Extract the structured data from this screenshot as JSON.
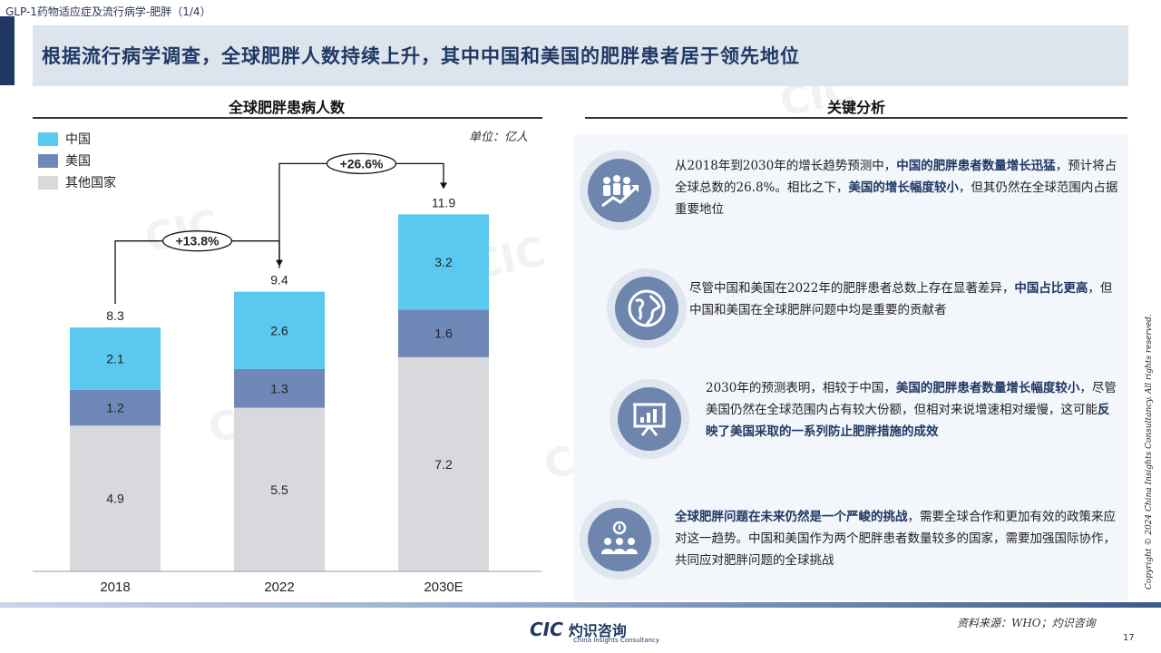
{
  "header": {
    "section_label": "GLP-1药物适应症及流行病学-肥胖（1/4）",
    "title": "根据流行病学调查，全球肥胖人数持续上升，其中中国和美国的肥胖患者居于领先地位"
  },
  "left_panel": {
    "title": "全球肥胖患病人数",
    "unit": "单位：亿人",
    "legend": [
      "中国",
      "美国",
      "其他国家"
    ]
  },
  "right_panel": {
    "title": "关键分析",
    "points": [
      {
        "icon": "people-growth-icon",
        "segments": [
          {
            "t": "从2018年到2030年的增长趋势预测中，",
            "b": false
          },
          {
            "t": "中国的肥胖患者数量增长迅猛",
            "b": true
          },
          {
            "t": "，预计将占全球总数的26.8%。相比之下，",
            "b": false
          },
          {
            "t": "美国的增长幅度较小",
            "b": true
          },
          {
            "t": "，但其仍然在全球范围内占据重要地位",
            "b": false
          }
        ]
      },
      {
        "icon": "globe-icon",
        "segments": [
          {
            "t": "尽管中国和美国在2022年的肥胖患者总数上存在显著差异，",
            "b": false
          },
          {
            "t": "中国占比更高",
            "b": true
          },
          {
            "t": "，但中国和美国在全球肥胖问题中均是重要的贡献者",
            "b": false
          }
        ]
      },
      {
        "icon": "presentation-chart-icon",
        "segments": [
          {
            "t": "2030年的预测表明，相较于中国，",
            "b": false
          },
          {
            "t": "美国的肥胖患者数量增长幅度较小",
            "b": true
          },
          {
            "t": "，尽管美国仍然在全球范围内占有较大份额，但相对来说增速相对缓慢，这可能",
            "b": false
          },
          {
            "t": "反映了美国采取的一系列防止肥胖措施的成效",
            "b": true
          }
        ]
      },
      {
        "icon": "team-idea-icon",
        "segments": [
          {
            "t": "全球肥胖问题在未来仍然是一个严峻的挑战",
            "b": true
          },
          {
            "t": "，需要全球合作和更加有效的政策来应对这一趋势。中国和美国作为两个肥胖患者数量较多的国家，需要加强国际协作，共同应对肥胖问题的全球挑战",
            "b": false
          }
        ]
      }
    ]
  },
  "footer": {
    "logo_mark": "CIC",
    "logo_cn": "灼识咨询",
    "logo_en": "China Insights Consultancy",
    "source": "资料来源：WHO；灼识咨询",
    "page_number": "17",
    "copyright": "Copyright © 2024 China Insights Consultancy. All rights reserved."
  },
  "colors": {
    "china": "#5bc8ef",
    "usa": "#6f88b8",
    "others": "#d7d9dc",
    "navy": "#1f3864"
  },
  "chart_data": {
    "type": "bar",
    "stacked": true,
    "categories": [
      "2018",
      "2022",
      "2030E"
    ],
    "series": [
      {
        "name": "其他国家",
        "values": [
          4.9,
          5.5,
          7.2
        ]
      },
      {
        "name": "美国",
        "values": [
          1.2,
          1.3,
          1.6
        ]
      },
      {
        "name": "中国",
        "values": [
          2.1,
          2.6,
          3.2
        ]
      }
    ],
    "totals": [
      8.3,
      9.4,
      11.9
    ],
    "growth_annotations": [
      {
        "from": "2018",
        "to": "2022",
        "label": "+13.8%"
      },
      {
        "from": "2022",
        "to": "2030E",
        "label": "+26.6%"
      }
    ],
    "title": "全球肥胖患病人数",
    "unit": "单位：亿人",
    "legend_position": "top-left",
    "grid": false
  }
}
